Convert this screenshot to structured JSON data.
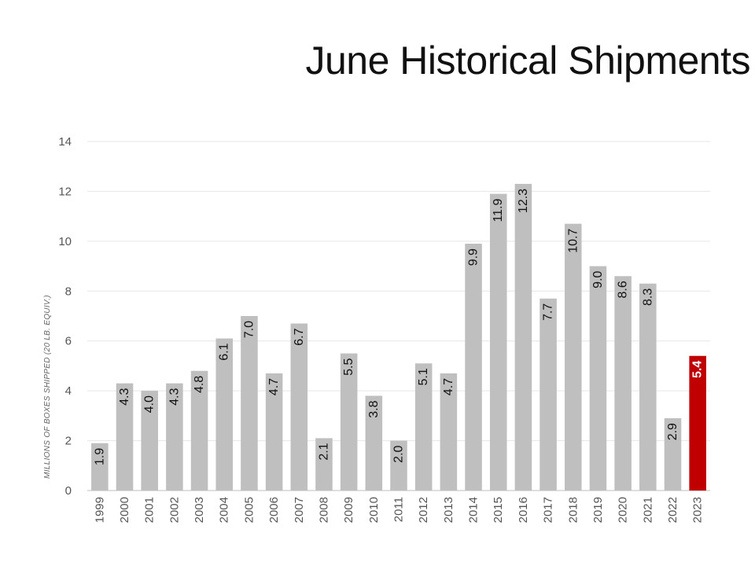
{
  "chart_data": {
    "type": "bar",
    "title": "June Historical Shipments",
    "ylabel": "MILLIONS OF BOXES SHIPPED (20 LB. EQUIV.)",
    "xlabel": "",
    "ylim": [
      0,
      14
    ],
    "yticks": [
      0,
      2,
      4,
      6,
      8,
      10,
      12,
      14
    ],
    "grid": true,
    "legend": "none",
    "categories": [
      "1999",
      "2000",
      "2001",
      "2002",
      "2003",
      "2004",
      "2005",
      "2006",
      "2007",
      "2008",
      "2009",
      "2010",
      "2011",
      "2012",
      "2013",
      "2014",
      "2015",
      "2016",
      "2017",
      "2018",
      "2019",
      "2020",
      "2021",
      "2022",
      "2023"
    ],
    "values": [
      1.9,
      4.3,
      4.0,
      4.3,
      4.8,
      6.1,
      7.0,
      4.7,
      6.7,
      2.1,
      5.5,
      3.8,
      2.0,
      5.1,
      4.7,
      9.9,
      11.9,
      12.3,
      7.7,
      10.7,
      9.0,
      8.6,
      8.3,
      2.9,
      5.4
    ],
    "value_labels": [
      "1.9",
      "4.3",
      "4.0",
      "4.3",
      "4.8",
      "6.1",
      "7.0",
      "4.7",
      "6.7",
      "2.1",
      "5.5",
      "3.8",
      "2.0",
      "5.1",
      "4.7",
      "9.9",
      "11.9",
      "12.3",
      "7.7",
      "10.7",
      "9.0",
      "8.6",
      "8.3",
      "2.9",
      "5.4"
    ],
    "highlight_category": "2023",
    "colors": {
      "bar": "#bfbfbf",
      "highlight": "#c00000",
      "grid": "#e6e6e6",
      "axis": "#bfbfbf"
    }
  }
}
